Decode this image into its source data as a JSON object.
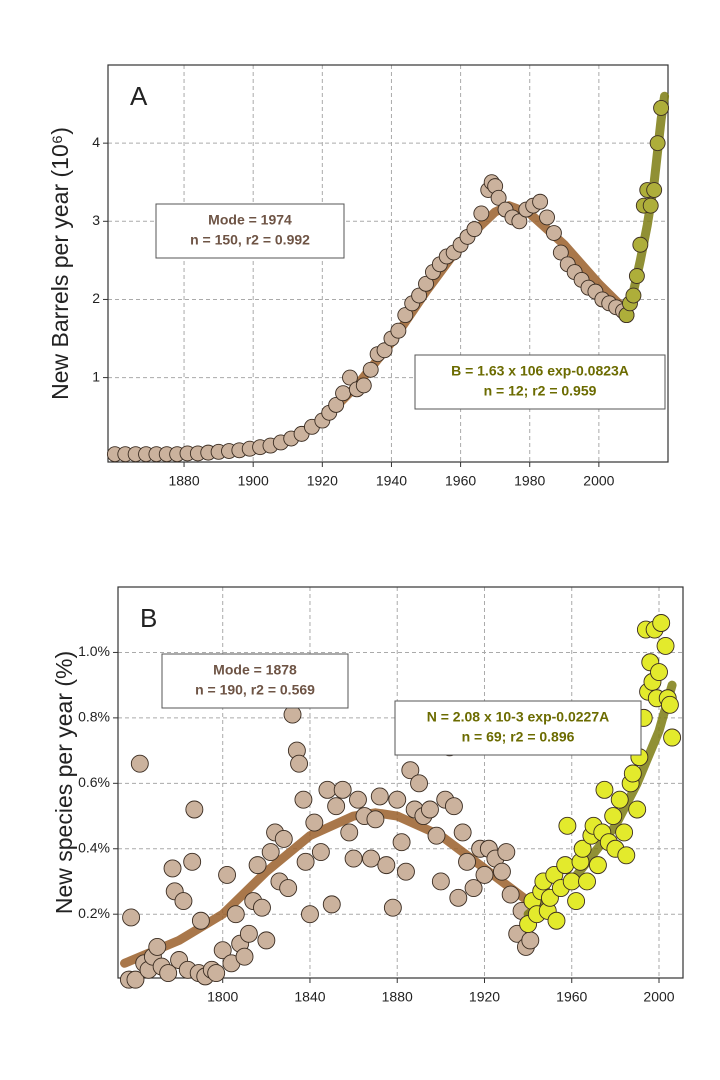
{
  "chart_data": [
    {
      "type": "scatter",
      "panel": "A",
      "ylabel": "New Barrels per year (10⁶)",
      "xlim": [
        1858,
        2020
      ],
      "ylim": [
        -0.08,
        5.0
      ],
      "xticks": [
        1880,
        1900,
        1920,
        1940,
        1960,
        1980,
        2000
      ],
      "yticks": [
        1,
        2,
        3,
        4
      ],
      "grid": true,
      "annotations": [
        {
          "lines": [
            "Mode = 1974",
            "n = 150, r2 = 0.992"
          ],
          "color": "#6e5445"
        },
        {
          "lines": [
            "B = 1.63 x 106 exp-0.0823A",
            "n = 12; r2 = 0.959"
          ],
          "color": "#6b6b00"
        }
      ],
      "series": [
        {
          "style": "line",
          "color": "#9a5f2a",
          "x": [
            1860,
            1880,
            1900,
            1910,
            1920,
            1930,
            1940,
            1950,
            1960,
            1970,
            1974,
            1980,
            1990,
            2000,
            2008
          ],
          "values": [
            0.02,
            0.03,
            0.1,
            0.2,
            0.45,
            0.9,
            1.45,
            2.1,
            2.7,
            3.12,
            3.2,
            3.1,
            2.7,
            2.2,
            1.85
          ]
        },
        {
          "style": "points",
          "color": "#cbb29d",
          "x": [
            1860,
            1863,
            1866,
            1869,
            1872,
            1875,
            1878,
            1881,
            1884,
            1887,
            1890,
            1893,
            1896,
            1899,
            1902,
            1905,
            1908,
            1911,
            1914,
            1917,
            1920,
            1922,
            1924,
            1926,
            1928,
            1930,
            1932,
            1934,
            1936,
            1938,
            1940,
            1942,
            1944,
            1946,
            1948,
            1950,
            1952,
            1954,
            1956,
            1958,
            1960,
            1962,
            1964,
            1966,
            1968,
            1969,
            1970,
            1971,
            1973,
            1975,
            1977,
            1979,
            1981,
            1983,
            1985,
            1987,
            1989,
            1991,
            1993,
            1995,
            1997,
            1999,
            2001,
            2003,
            2005,
            2007,
            2008
          ],
          "values": [
            0.02,
            0.02,
            0.02,
            0.02,
            0.02,
            0.02,
            0.02,
            0.03,
            0.03,
            0.04,
            0.05,
            0.06,
            0.07,
            0.09,
            0.11,
            0.13,
            0.17,
            0.22,
            0.28,
            0.37,
            0.45,
            0.55,
            0.65,
            0.8,
            1.0,
            0.85,
            0.9,
            1.1,
            1.3,
            1.35,
            1.5,
            1.6,
            1.8,
            1.95,
            2.05,
            2.2,
            2.35,
            2.45,
            2.55,
            2.6,
            2.7,
            2.8,
            2.9,
            3.1,
            3.4,
            3.5,
            3.45,
            3.3,
            3.15,
            3.05,
            3.0,
            3.15,
            3.2,
            3.25,
            3.05,
            2.85,
            2.6,
            2.45,
            2.35,
            2.25,
            2.15,
            2.1,
            2.0,
            1.95,
            1.9,
            1.85,
            1.8
          ]
        },
        {
          "style": "line",
          "color": "#7d7d12",
          "x": [
            2008,
            2010,
            2012,
            2014,
            2016,
            2018,
            2019
          ],
          "values": [
            1.8,
            2.1,
            2.5,
            2.95,
            3.5,
            4.3,
            4.6
          ]
        },
        {
          "style": "points",
          "color": "#aeae3a",
          "x": [
            2008,
            2009,
            2010,
            2011,
            2012,
            2013,
            2014,
            2015,
            2016,
            2017,
            2018
          ],
          "values": [
            1.8,
            1.95,
            2.05,
            2.3,
            2.7,
            3.2,
            3.4,
            3.2,
            3.4,
            4.0,
            4.45
          ]
        }
      ]
    },
    {
      "type": "scatter",
      "panel": "B",
      "ylabel": "New species per year (%)",
      "xlim": [
        1752,
        2011
      ],
      "ylim": [
        0.005,
        1.2
      ],
      "xticks": [
        1800,
        1840,
        1880,
        1920,
        1960,
        2000
      ],
      "yticks": [
        {
          "value": 0.2,
          "label": "0.2%"
        },
        {
          "value": 0.4,
          "label": "0.4%"
        },
        {
          "value": 0.6,
          "label": "0.6%"
        },
        {
          "value": 0.8,
          "label": "0.8%"
        },
        {
          "value": 1.0,
          "label": "1.0%"
        }
      ],
      "grid": true,
      "annotations": [
        {
          "lines": [
            "Mode = 1878",
            "n = 190, r2 = 0.569"
          ],
          "color": "#6e5445"
        },
        {
          "lines": [
            "N = 2.08 x 10-3 exp-0.0227A",
            "n = 69; r2 = 0.896"
          ],
          "color": "#6b6b00"
        }
      ],
      "series": [
        {
          "style": "line",
          "color": "#9a5f2a",
          "x": [
            1755,
            1780,
            1800,
            1820,
            1840,
            1860,
            1870,
            1880,
            1900,
            1920,
            1940
          ],
          "values": [
            0.05,
            0.12,
            0.2,
            0.33,
            0.44,
            0.5,
            0.51,
            0.5,
            0.44,
            0.34,
            0.24
          ]
        },
        {
          "style": "points",
          "color": "#cbb29d",
          "x": [
            1757,
            1758,
            1760,
            1762,
            1764,
            1766,
            1768,
            1770,
            1772,
            1775,
            1777,
            1778,
            1780,
            1782,
            1784,
            1786,
            1787,
            1789,
            1790,
            1792,
            1795,
            1797,
            1800,
            1802,
            1804,
            1806,
            1808,
            1810,
            1812,
            1814,
            1816,
            1818,
            1820,
            1822,
            1824,
            1826,
            1828,
            1830,
            1832,
            1834,
            1835,
            1837,
            1838,
            1840,
            1842,
            1845,
            1848,
            1850,
            1852,
            1855,
            1858,
            1860,
            1862,
            1865,
            1868,
            1870,
            1872,
            1875,
            1878,
            1880,
            1882,
            1884,
            1886,
            1888,
            1890,
            1892,
            1895,
            1898,
            1900,
            1902,
            1904,
            1906,
            1908,
            1910,
            1912,
            1915,
            1918,
            1920,
            1922,
            1925,
            1928,
            1930,
            1932,
            1935,
            1937,
            1939,
            1941
          ],
          "values": [
            0.0,
            0.19,
            0.0,
            0.66,
            0.05,
            0.03,
            0.07,
            0.1,
            0.04,
            0.02,
            0.34,
            0.27,
            0.06,
            0.24,
            0.03,
            0.36,
            0.52,
            0.02,
            0.18,
            0.01,
            0.03,
            0.02,
            0.09,
            0.32,
            0.05,
            0.2,
            0.11,
            0.07,
            0.14,
            0.24,
            0.35,
            0.22,
            0.12,
            0.39,
            0.45,
            0.3,
            0.43,
            0.28,
            0.81,
            0.7,
            0.66,
            0.55,
            0.36,
            0.2,
            0.48,
            0.39,
            0.58,
            0.23,
            0.53,
            0.58,
            0.45,
            0.37,
            0.55,
            0.5,
            0.37,
            0.49,
            0.56,
            0.35,
            0.22,
            0.55,
            0.42,
            0.33,
            0.64,
            0.52,
            0.6,
            0.5,
            0.52,
            0.44,
            0.3,
            0.55,
            0.71,
            0.53,
            0.25,
            0.45,
            0.36,
            0.28,
            0.4,
            0.32,
            0.4,
            0.37,
            0.33,
            0.39,
            0.26,
            0.14,
            0.21,
            0.1,
            0.12
          ]
        },
        {
          "style": "line",
          "color": "#7d7d12",
          "x": [
            1940,
            1960,
            1980,
            1990,
            2000,
            2006
          ],
          "values": [
            0.2,
            0.3,
            0.47,
            0.6,
            0.76,
            0.9
          ]
        },
        {
          "style": "points",
          "color": "#e3ea2c",
          "x": [
            1940,
            1942,
            1944,
            1946,
            1947,
            1949,
            1950,
            1952,
            1953,
            1955,
            1957,
            1958,
            1960,
            1962,
            1964,
            1965,
            1967,
            1969,
            1970,
            1972,
            1974,
            1975,
            1977,
            1979,
            1980,
            1982,
            1984,
            1985,
            1987,
            1988,
            1990,
            1991,
            1993,
            1994,
            1995,
            1996,
            1997,
            1998,
            1999,
            2000,
            2001,
            2003,
            2004,
            2005,
            2006
          ],
          "values": [
            0.17,
            0.24,
            0.2,
            0.27,
            0.3,
            0.21,
            0.25,
            0.32,
            0.18,
            0.28,
            0.35,
            0.47,
            0.3,
            0.24,
            0.36,
            0.4,
            0.3,
            0.44,
            0.47,
            0.35,
            0.45,
            0.58,
            0.42,
            0.5,
            0.4,
            0.55,
            0.45,
            0.38,
            0.6,
            0.63,
            0.52,
            0.68,
            0.8,
            1.07,
            0.88,
            0.97,
            0.91,
            1.07,
            0.86,
            0.94,
            1.09,
            1.02,
            0.86,
            0.84,
            0.74
          ]
        }
      ]
    }
  ]
}
